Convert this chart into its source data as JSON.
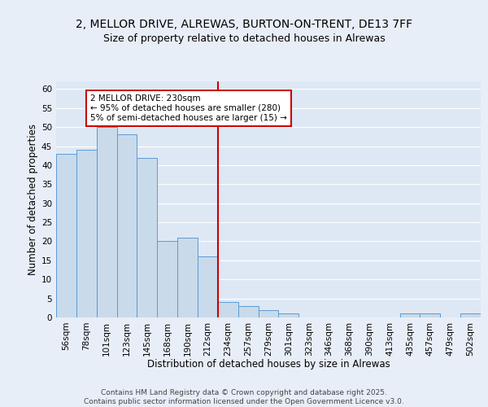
{
  "title_line1": "2, MELLOR DRIVE, ALREWAS, BURTON-ON-TRENT, DE13 7FF",
  "title_line2": "Size of property relative to detached houses in Alrewas",
  "xlabel": "Distribution of detached houses by size in Alrewas",
  "ylabel": "Number of detached properties",
  "categories": [
    "56sqm",
    "78sqm",
    "101sqm",
    "123sqm",
    "145sqm",
    "168sqm",
    "190sqm",
    "212sqm",
    "234sqm",
    "257sqm",
    "279sqm",
    "301sqm",
    "323sqm",
    "346sqm",
    "368sqm",
    "390sqm",
    "413sqm",
    "435sqm",
    "457sqm",
    "479sqm",
    "502sqm"
  ],
  "values": [
    43,
    44,
    50,
    48,
    42,
    20,
    21,
    16,
    4,
    3,
    2,
    1,
    0,
    0,
    0,
    0,
    0,
    1,
    1,
    0,
    1
  ],
  "bar_color": "#c9daea",
  "bar_edge_color": "#5b9bd5",
  "vline_x_index": 8,
  "vline_color": "#cc0000",
  "annotation_text": "2 MELLOR DRIVE: 230sqm\n← 95% of detached houses are smaller (280)\n5% of semi-detached houses are larger (15) →",
  "annotation_box_color": "#ffffff",
  "annotation_box_edge": "#cc0000",
  "ylim": [
    0,
    62
  ],
  "yticks": [
    0,
    5,
    10,
    15,
    20,
    25,
    30,
    35,
    40,
    45,
    50,
    55,
    60
  ],
  "background_color": "#dde8f4",
  "fig_background_color": "#e8eef8",
  "footer_text": "Contains HM Land Registry data © Crown copyright and database right 2025.\nContains public sector information licensed under the Open Government Licence v3.0.",
  "grid_color": "#ffffff",
  "title_fontsize": 10,
  "subtitle_fontsize": 9,
  "axis_label_fontsize": 8.5,
  "tick_fontsize": 7.5,
  "footer_fontsize": 6.5
}
